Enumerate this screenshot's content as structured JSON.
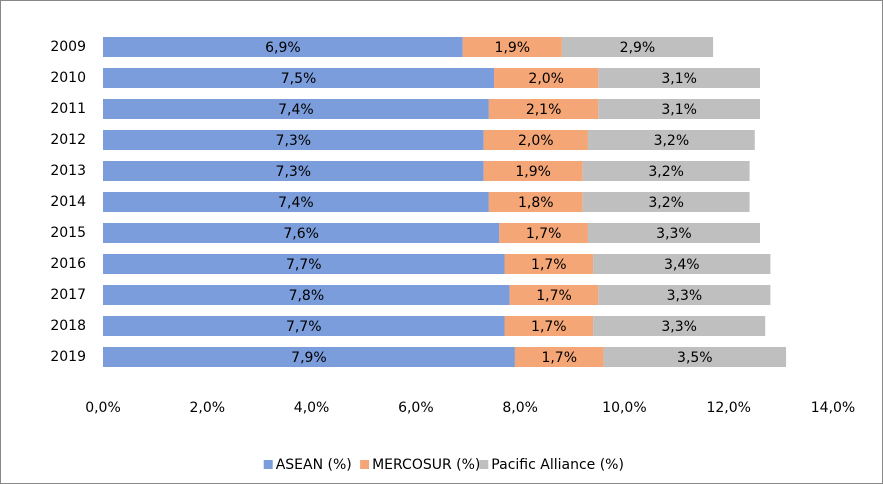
{
  "chart_data": {
    "type": "stacked-bar-horizontal",
    "categories": [
      "2009",
      "2010",
      "2011",
      "2012",
      "2013",
      "2014",
      "2015",
      "2016",
      "2017",
      "2018",
      "2019"
    ],
    "series": [
      {
        "name": "ASEAN (%)",
        "color": "#7b9ddb",
        "values": [
          6.9,
          7.5,
          7.4,
          7.3,
          7.3,
          7.4,
          7.6,
          7.7,
          7.8,
          7.7,
          7.9
        ],
        "value_labels": [
          "6,9%",
          "7,5%",
          "7,4%",
          "7,3%",
          "7,3%",
          "7,4%",
          "7,6%",
          "7,7%",
          "7,8%",
          "7,7%",
          "7,9%"
        ]
      },
      {
        "name": "MERCOSUR (%)",
        "color": "#f4a677",
        "values": [
          1.9,
          2.0,
          2.1,
          2.0,
          1.9,
          1.8,
          1.7,
          1.7,
          1.7,
          1.7,
          1.7
        ],
        "value_labels": [
          "1,9%",
          "2,0%",
          "2,1%",
          "2,0%",
          "1,9%",
          "1,8%",
          "1,7%",
          "1,7%",
          "1,7%",
          "1,7%",
          "1,7%"
        ]
      },
      {
        "name": "Pacific Alliance (%)",
        "color": "#bfbfbf",
        "values": [
          2.9,
          3.1,
          3.1,
          3.2,
          3.2,
          3.2,
          3.3,
          3.4,
          3.3,
          3.3,
          3.5
        ],
        "value_labels": [
          "2,9%",
          "3,1%",
          "3,1%",
          "3,2%",
          "3,2%",
          "3,2%",
          "3,3%",
          "3,4%",
          "3,3%",
          "3,3%",
          "3,5%"
        ]
      }
    ],
    "xlim": [
      0,
      14
    ],
    "xticks": [
      {
        "value": 0,
        "label": "0,0%"
      },
      {
        "value": 2,
        "label": "2,0%"
      },
      {
        "value": 4,
        "label": "4,0%"
      },
      {
        "value": 6,
        "label": "6,0%"
      },
      {
        "value": 8,
        "label": "8,0%"
      },
      {
        "value": 10,
        "label": "10,0%"
      },
      {
        "value": 12,
        "label": "12,0%"
      },
      {
        "value": 14,
        "label": "14,0%"
      }
    ],
    "grid": false,
    "legend": "bottom"
  }
}
